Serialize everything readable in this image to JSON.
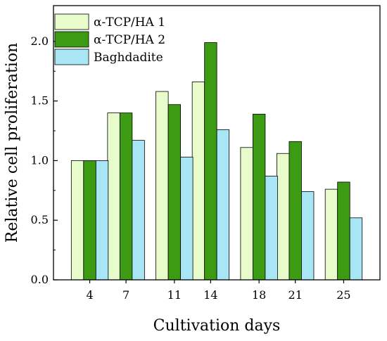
{
  "chart_data": {
    "type": "bar",
    "title": "",
    "xlabel": "Cultivation days",
    "ylabel": "Relative cell proliferation",
    "categories": [
      "4",
      "7",
      "11",
      "14",
      "18",
      "21",
      "25"
    ],
    "x_values": [
      4,
      7,
      11,
      14,
      18,
      21,
      25
    ],
    "xlim": [
      1,
      28
    ],
    "ylim": [
      0.0,
      2.3
    ],
    "yticks": [
      "0.0",
      "0.5",
      "1.0",
      "1.5",
      "2.0"
    ],
    "grid": false,
    "legend_position": "top-left",
    "series": [
      {
        "name": "α-TCP/HA 1",
        "color": "#e8fccb",
        "values": [
          1.0,
          1.4,
          1.58,
          1.66,
          1.11,
          1.06,
          0.76
        ]
      },
      {
        "name": "α-TCP/HA 2",
        "color": "#3c9a13",
        "values": [
          1.0,
          1.4,
          1.47,
          1.99,
          1.39,
          1.16,
          0.82
        ]
      },
      {
        "name": "Baghdadite",
        "color": "#a8e6f6",
        "values": [
          1.0,
          1.17,
          1.03,
          1.26,
          0.87,
          0.74,
          0.52
        ]
      }
    ]
  }
}
